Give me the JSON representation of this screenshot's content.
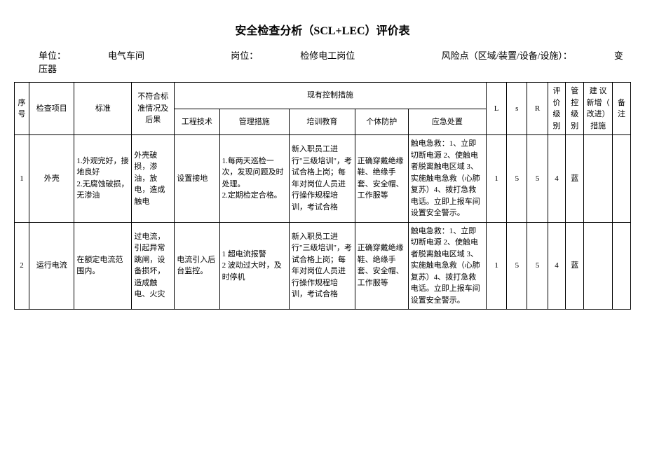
{
  "title": "安全检查分析（SCL+LEC）评价表",
  "header": {
    "unit_label": "单位：",
    "unit_value": "电气车间",
    "post_label": "岗位：",
    "post_value": "检修电工岗位",
    "risk_label": "风险点（区域/装置/设备/设施）：",
    "risk_value": "变压器"
  },
  "columns": {
    "seq": "序号",
    "item": "检查项目",
    "standard": "标准",
    "nonconformity": "不符合标准情况及后果",
    "measures_group": "现有控制措施",
    "engineering": "工程技术",
    "management": "管理措施",
    "training": "培训教育",
    "ppe": "个体防护",
    "emergency": "应急处置",
    "L": "L",
    "s": "s",
    "R": "R",
    "eval_grade": "评价级别",
    "ctrl_grade": "管控级别",
    "recommend": "建 议新增（ 改进）措施",
    "note": "备注"
  },
  "rows": [
    {
      "seq": "1",
      "item": "外壳",
      "standard": "1.外观完好，接地良好\n2.无腐蚀破损，无渗油",
      "nonconformity": "外壳破损，渗油，放电，造成触电",
      "engineering": "设置接地",
      "management": "1.每两天巡检一次，发现问题及时处理。\n2.定期检定合格。",
      "training": "新入职员工进行\"三级培训\"，考试合格上岗；每年对岗位人员进行操作规程培训，考试合格",
      "ppe": "正确穿戴绝缘鞋、绝缘手套、安全帽、工作服等",
      "emergency": "触电急救：1、立即切断电源 2、使触电者脱离触电区域 3、实施触电急救（心肺复苏）4、拨打急救电话。立即上报车间设置安全警示。",
      "L": "1",
      "s": "5",
      "R": "5",
      "eval_grade": "4",
      "ctrl_grade": "蓝",
      "recommend": "",
      "note": ""
    },
    {
      "seq": "2",
      "item": "运行电流",
      "standard": "在额定电流范围内。",
      "nonconformity": "过电流，引起异常跳闸，设备损坏，造成触电、火灾",
      "engineering": "电流引入后台监控。",
      "management": "1 超电流报警\n2 波动过大时，及时停机",
      "training": "新入职员工进行\"三级培训\"，考试合格上岗；每年对岗位人员进行操作规程培训，考试合格",
      "ppe": "正确穿戴绝缘鞋、绝缘手套、安全帽、工作服等",
      "emergency": "触电急救：1、立即切断电源 2、使触电者脱离触电区域 3、实施触电急救（心肺复苏）4、拨打急救电话。立即上报车间设置安全警示。",
      "L": "1",
      "s": "5",
      "R": "5",
      "eval_grade": "4",
      "ctrl_grade": "蓝",
      "recommend": "",
      "note": ""
    }
  ]
}
